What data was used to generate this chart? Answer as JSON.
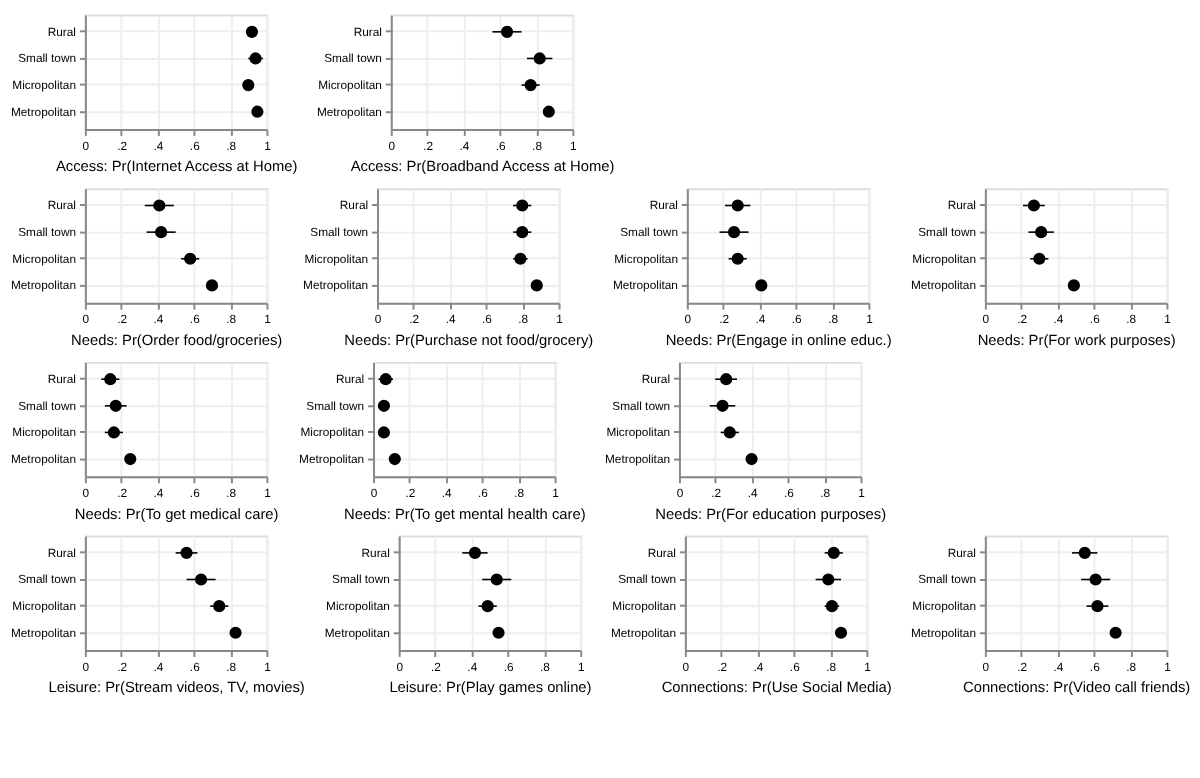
{
  "chart_data": [
    {
      "type": "scatter",
      "orientation": "horizontal",
      "xlabel": "Access: Pr(Internet Access at Home)",
      "categories": [
        "Rural",
        "Small town",
        "Micropolitan",
        "Metropolitan"
      ],
      "values": [
        0.92,
        0.94,
        0.9,
        0.95
      ],
      "errors": [
        0.03,
        0.04,
        0.03,
        0.02
      ],
      "color": "#000000",
      "marker": "circle",
      "xlim": [
        0,
        1
      ],
      "xticks": [
        0,
        {
          "value": 0.2,
          "label": ".2"
        },
        {
          "value": 0.4,
          "label": ".4"
        },
        {
          "value": 0.6,
          "label": ".6"
        },
        {
          "value": 0.8,
          "label": ".8"
        },
        1
      ],
      "grid": true
    },
    {
      "type": "scatter",
      "orientation": "horizontal",
      "xlabel": "Access: Pr(Broadband Access at Home)",
      "categories": [
        "Rural",
        "Small town",
        "Micropolitan",
        "Metropolitan"
      ],
      "values": [
        0.64,
        0.82,
        0.77,
        0.87
      ],
      "errors": [
        0.08,
        0.07,
        0.05,
        0.03
      ],
      "color": "#000000",
      "marker": "circle",
      "xlim": [
        0,
        1
      ],
      "xticks": [
        0,
        {
          "value": 0.2,
          "label": ".2"
        },
        {
          "value": 0.4,
          "label": ".4"
        },
        {
          "value": 0.6,
          "label": ".6"
        },
        {
          "value": 0.8,
          "label": ".8"
        },
        1
      ],
      "grid": true
    },
    {
      "type": "scatter",
      "orientation": "horizontal",
      "xlabel": "Needs: Pr(Order food/groceries)",
      "categories": [
        "Rural",
        "Small town",
        "Micropolitan",
        "Metropolitan"
      ],
      "values": [
        0.41,
        0.42,
        0.58,
        0.7
      ],
      "errors": [
        0.08,
        0.08,
        0.05,
        0.03
      ],
      "color": "#000000",
      "marker": "circle",
      "xlim": [
        0,
        1
      ],
      "xticks": [
        0,
        {
          "value": 0.2,
          "label": ".2"
        },
        {
          "value": 0.4,
          "label": ".4"
        },
        {
          "value": 0.6,
          "label": ".6"
        },
        {
          "value": 0.8,
          "label": ".8"
        },
        1
      ],
      "grid": true
    },
    {
      "type": "scatter",
      "orientation": "horizontal",
      "xlabel": "Needs: Pr(Purchase not food/grocery)",
      "categories": [
        "Rural",
        "Small town",
        "Micropolitan",
        "Metropolitan"
      ],
      "values": [
        0.8,
        0.8,
        0.79,
        0.88
      ],
      "errors": [
        0.05,
        0.05,
        0.04,
        0.02
      ],
      "color": "#000000",
      "marker": "circle",
      "xlim": [
        0,
        1
      ],
      "xticks": [
        0,
        {
          "value": 0.2,
          "label": ".2"
        },
        {
          "value": 0.4,
          "label": ".4"
        },
        {
          "value": 0.6,
          "label": ".6"
        },
        {
          "value": 0.8,
          "label": ".8"
        },
        1
      ],
      "grid": true
    },
    {
      "type": "scatter",
      "orientation": "horizontal",
      "xlabel": "Needs: Pr(Engage in online educ.)",
      "categories": [
        "Rural",
        "Small town",
        "Micropolitan",
        "Metropolitan"
      ],
      "values": [
        0.28,
        0.26,
        0.28,
        0.41
      ],
      "errors": [
        0.07,
        0.08,
        0.05,
        0.03
      ],
      "color": "#000000",
      "marker": "circle",
      "xlim": [
        0,
        1
      ],
      "xticks": [
        0,
        {
          "value": 0.2,
          "label": ".2"
        },
        {
          "value": 0.4,
          "label": ".4"
        },
        {
          "value": 0.6,
          "label": ".6"
        },
        {
          "value": 0.8,
          "label": ".8"
        },
        1
      ],
      "grid": true
    },
    {
      "type": "scatter",
      "orientation": "horizontal",
      "xlabel": "Needs: Pr(For work purposes)",
      "categories": [
        "Rural",
        "Small town",
        "Micropolitan",
        "Metropolitan"
      ],
      "values": [
        0.27,
        0.31,
        0.3,
        0.49
      ],
      "errors": [
        0.06,
        0.07,
        0.05,
        0.03
      ],
      "color": "#000000",
      "marker": "circle",
      "xlim": [
        0,
        1
      ],
      "xticks": [
        0,
        {
          "value": 0.2,
          "label": ".2"
        },
        {
          "value": 0.4,
          "label": ".4"
        },
        {
          "value": 0.6,
          "label": ".6"
        },
        {
          "value": 0.8,
          "label": ".8"
        },
        1
      ],
      "grid": true
    },
    {
      "type": "scatter",
      "orientation": "horizontal",
      "xlabel": "Needs: Pr(To get medical care)",
      "categories": [
        "Rural",
        "Small town",
        "Micropolitan",
        "Metropolitan"
      ],
      "values": [
        0.14,
        0.17,
        0.16,
        0.25
      ],
      "errors": [
        0.05,
        0.06,
        0.05,
        0.03
      ],
      "color": "#000000",
      "marker": "circle",
      "xlim": [
        0,
        1
      ],
      "xticks": [
        0,
        {
          "value": 0.2,
          "label": ".2"
        },
        {
          "value": 0.4,
          "label": ".4"
        },
        {
          "value": 0.6,
          "label": ".6"
        },
        {
          "value": 0.8,
          "label": ".8"
        },
        1
      ],
      "grid": true
    },
    {
      "type": "scatter",
      "orientation": "horizontal",
      "xlabel": "Needs: Pr(To get mental health care)",
      "categories": [
        "Rural",
        "Small town",
        "Micropolitan",
        "Metropolitan"
      ],
      "values": [
        0.07,
        0.06,
        0.06,
        0.12
      ],
      "errors": [
        0.04,
        0.03,
        0.03,
        0.02
      ],
      "color": "#000000",
      "marker": "circle",
      "xlim": [
        0,
        1
      ],
      "xticks": [
        0,
        {
          "value": 0.2,
          "label": ".2"
        },
        {
          "value": 0.4,
          "label": ".4"
        },
        {
          "value": 0.6,
          "label": ".6"
        },
        {
          "value": 0.8,
          "label": ".8"
        },
        1
      ],
      "grid": true
    },
    {
      "type": "scatter",
      "orientation": "horizontal",
      "xlabel": "Needs: Pr(For education purposes)",
      "categories": [
        "Rural",
        "Small town",
        "Micropolitan",
        "Metropolitan"
      ],
      "values": [
        0.26,
        0.24,
        0.28,
        0.4
      ],
      "errors": [
        0.06,
        0.07,
        0.05,
        0.03
      ],
      "color": "#000000",
      "marker": "circle",
      "xlim": [
        0,
        1
      ],
      "xticks": [
        0,
        {
          "value": 0.2,
          "label": ".2"
        },
        {
          "value": 0.4,
          "label": ".4"
        },
        {
          "value": 0.6,
          "label": ".6"
        },
        {
          "value": 0.8,
          "label": ".8"
        },
        1
      ],
      "grid": true
    },
    {
      "type": "scatter",
      "orientation": "horizontal",
      "xlabel": "Leisure: Pr(Stream videos, TV, movies)",
      "categories": [
        "Rural",
        "Small town",
        "Micropolitan",
        "Metropolitan"
      ],
      "values": [
        0.56,
        0.64,
        0.74,
        0.83
      ],
      "errors": [
        0.06,
        0.08,
        0.05,
        0.02
      ],
      "color": "#000000",
      "marker": "circle",
      "xlim": [
        0,
        1
      ],
      "xticks": [
        0,
        {
          "value": 0.2,
          "label": ".2"
        },
        {
          "value": 0.4,
          "label": ".4"
        },
        {
          "value": 0.6,
          "label": ".6"
        },
        {
          "value": 0.8,
          "label": ".8"
        },
        1
      ],
      "grid": true
    },
    {
      "type": "scatter",
      "orientation": "horizontal",
      "xlabel": "Leisure: Pr(Play games online)",
      "categories": [
        "Rural",
        "Small town",
        "Micropolitan",
        "Metropolitan"
      ],
      "values": [
        0.42,
        0.54,
        0.49,
        0.55
      ],
      "errors": [
        0.07,
        0.08,
        0.05,
        0.03
      ],
      "color": "#000000",
      "marker": "circle",
      "xlim": [
        0,
        1
      ],
      "xticks": [
        0,
        {
          "value": 0.2,
          "label": ".2"
        },
        {
          "value": 0.4,
          "label": ".4"
        },
        {
          "value": 0.6,
          "label": ".6"
        },
        {
          "value": 0.8,
          "label": ".8"
        },
        1
      ],
      "grid": true
    },
    {
      "type": "scatter",
      "orientation": "horizontal",
      "xlabel": "Connections: Pr(Use Social Media)",
      "categories": [
        "Rural",
        "Small town",
        "Micropolitan",
        "Metropolitan"
      ],
      "values": [
        0.82,
        0.79,
        0.81,
        0.86
      ],
      "errors": [
        0.05,
        0.07,
        0.04,
        0.02
      ],
      "color": "#000000",
      "marker": "circle",
      "xlim": [
        0,
        1
      ],
      "xticks": [
        0,
        {
          "value": 0.2,
          "label": ".2"
        },
        {
          "value": 0.4,
          "label": ".4"
        },
        {
          "value": 0.6,
          "label": ".6"
        },
        {
          "value": 0.8,
          "label": ".8"
        },
        1
      ],
      "grid": true
    },
    {
      "type": "scatter",
      "orientation": "horizontal",
      "xlabel": "Connections: Pr(Video call friends)",
      "categories": [
        "Rural",
        "Small town",
        "Micropolitan",
        "Metropolitan"
      ],
      "values": [
        0.55,
        0.61,
        0.62,
        0.72
      ],
      "errors": [
        0.07,
        0.08,
        0.06,
        0.03
      ],
      "color": "#000000",
      "marker": "circle",
      "xlim": [
        0,
        1
      ],
      "xticks": [
        0,
        {
          "value": 0.2,
          "label": ".2"
        },
        {
          "value": 0.4,
          "label": ".4"
        },
        {
          "value": 0.6,
          "label": ".6"
        },
        {
          "value": 0.8,
          "label": ".8"
        },
        1
      ],
      "grid": true
    }
  ]
}
